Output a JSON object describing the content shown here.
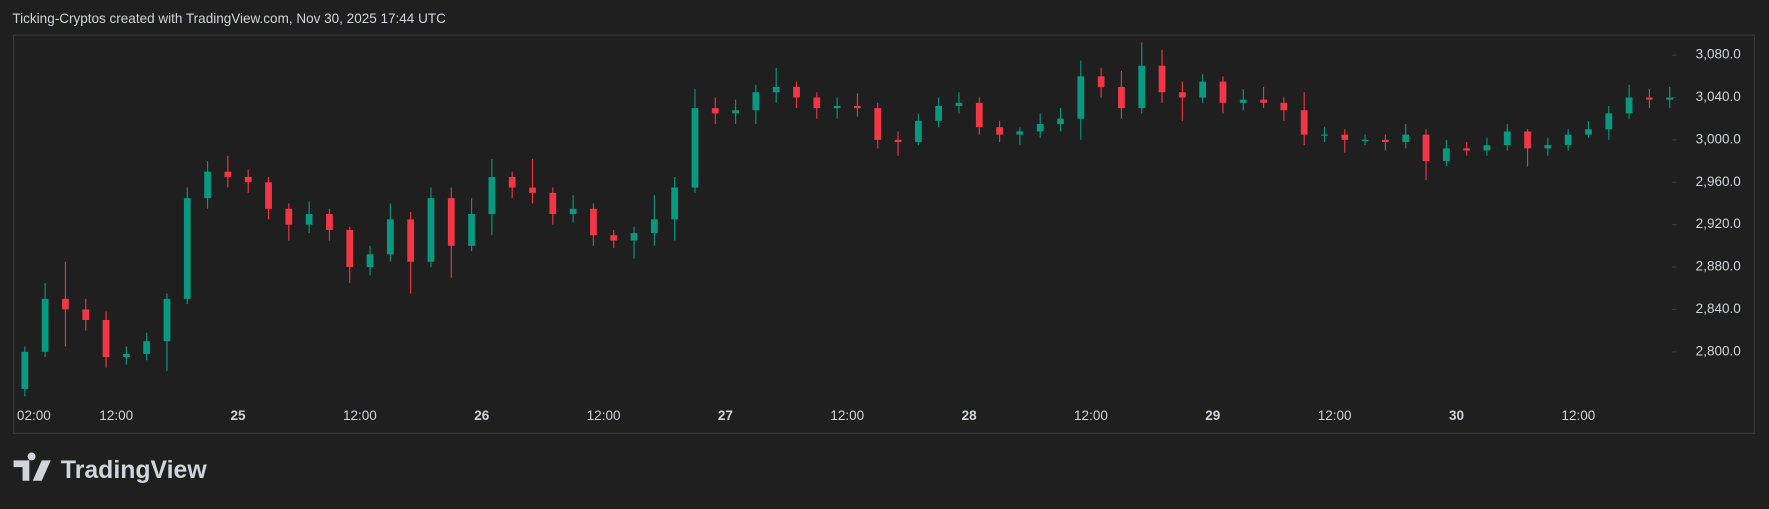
{
  "header": {
    "caption": "Ticking-Cryptos created with TradingView.com, Nov 30, 2025 17:44 UTC"
  },
  "brand": {
    "name": "TradingView"
  },
  "chart_data": {
    "type": "candlestick",
    "categories": [
      "02:00",
      null,
      null,
      null,
      null,
      "12:00",
      null,
      null,
      null,
      null,
      null,
      "25",
      null,
      null,
      null,
      null,
      null,
      "12:00",
      null,
      null,
      null,
      null,
      null,
      "26",
      null,
      null,
      null,
      null,
      null,
      "12:00",
      null,
      null,
      null,
      null,
      null,
      "27",
      null,
      null,
      null,
      null,
      null,
      "12:00",
      null,
      null,
      null,
      null,
      null,
      "28",
      null,
      null,
      null,
      null,
      null,
      "12:00",
      null,
      null,
      null,
      null,
      null,
      "29",
      null,
      null,
      null,
      null,
      null,
      "12:00",
      null,
      null,
      null,
      null,
      null,
      "30",
      null,
      null,
      null,
      null,
      null,
      "12:00",
      null,
      null,
      null,
      null
    ],
    "open": [
      2765,
      2800,
      2850,
      2840,
      2830,
      2795,
      2798,
      2810,
      2850,
      2945,
      2970,
      2965,
      2960,
      2935,
      2920,
      2930,
      2915,
      2880,
      2892,
      2925,
      2885,
      2945,
      2900,
      2930,
      2965,
      2955,
      2950,
      2930,
      2935,
      2910,
      2905,
      2912,
      2925,
      2955,
      3030,
      3025,
      3028,
      3045,
      3050,
      3040,
      3030,
      3032,
      3030,
      3000,
      2998,
      3018,
      3032,
      3035,
      3012,
      3005,
      3008,
      3015,
      3020,
      3060,
      3050,
      3030,
      3070,
      3045,
      3040,
      3055,
      3035,
      3038,
      3035,
      3028,
      3005,
      3005,
      3000,
      3000,
      2998,
      3005,
      2980,
      2992,
      2990,
      2995,
      3008,
      2992,
      2995,
      3005,
      3010,
      3025,
      3040,
      3038
    ],
    "high": [
      2805,
      2865,
      2885,
      2850,
      2838,
      2805,
      2818,
      2855,
      2955,
      2980,
      2985,
      2972,
      2965,
      2940,
      2942,
      2935,
      2918,
      2900,
      2940,
      2932,
      2955,
      2955,
      2945,
      2982,
      2970,
      2982,
      2955,
      2948,
      2940,
      2915,
      2918,
      2948,
      2965,
      3048,
      3040,
      3038,
      3052,
      3068,
      3055,
      3045,
      3040,
      3044,
      3035,
      3008,
      3025,
      3040,
      3045,
      3040,
      3018,
      3012,
      3025,
      3030,
      3075,
      3068,
      3065,
      3092,
      3085,
      3055,
      3062,
      3060,
      3048,
      3050,
      3040,
      3045,
      3012,
      3010,
      3005,
      3005,
      3015,
      3010,
      3000,
      2998,
      3002,
      3015,
      3010,
      3002,
      3010,
      3018,
      3032,
      3052,
      3048,
      3050
    ],
    "low": [
      2758,
      2795,
      2805,
      2820,
      2785,
      2788,
      2792,
      2782,
      2845,
      2935,
      2955,
      2950,
      2925,
      2905,
      2912,
      2905,
      2865,
      2872,
      2885,
      2855,
      2880,
      2870,
      2895,
      2910,
      2945,
      2940,
      2920,
      2922,
      2900,
      2898,
      2888,
      2900,
      2905,
      2950,
      3015,
      3015,
      3015,
      3035,
      3030,
      3020,
      3020,
      3022,
      2992,
      2985,
      2995,
      3012,
      3025,
      3005,
      2998,
      2995,
      3002,
      3008,
      3000,
      3040,
      3020,
      3025,
      3035,
      3018,
      3035,
      3025,
      3028,
      3030,
      3018,
      2995,
      2998,
      2988,
      2995,
      2990,
      2992,
      2962,
      2975,
      2985,
      2985,
      2990,
      2975,
      2985,
      2990,
      3002,
      3000,
      3020,
      3030,
      3030
    ],
    "close": [
      2800,
      2850,
      2840,
      2830,
      2795,
      2798,
      2810,
      2850,
      2945,
      2970,
      2965,
      2960,
      2935,
      2920,
      2930,
      2915,
      2880,
      2892,
      2925,
      2885,
      2945,
      2900,
      2930,
      2965,
      2955,
      2950,
      2930,
      2935,
      2910,
      2905,
      2912,
      2925,
      2955,
      3030,
      3025,
      3028,
      3045,
      3050,
      3040,
      3030,
      3032,
      3030,
      3000,
      2998,
      3018,
      3032,
      3035,
      3012,
      3005,
      3008,
      3015,
      3020,
      3060,
      3050,
      3030,
      3070,
      3045,
      3040,
      3055,
      3035,
      3038,
      3035,
      3028,
      3005,
      3005,
      3000,
      3000,
      2998,
      3005,
      2980,
      2992,
      2990,
      2995,
      3008,
      2992,
      2995,
      3005,
      3010,
      3025,
      3040,
      3038,
      3040
    ],
    "up_color": "#089981",
    "down_color": "#f23645",
    "ylim": [
      2755,
      3100
    ],
    "yticks": [
      {
        "value": 2800,
        "label": "2,800.0"
      },
      {
        "value": 2840,
        "label": "2,840.0"
      },
      {
        "value": 2880,
        "label": "2,880.0"
      },
      {
        "value": 2920,
        "label": "2,920.0"
      },
      {
        "value": 2960,
        "label": "2,960.0"
      },
      {
        "value": 3000,
        "label": "3,000.0"
      },
      {
        "value": 3040,
        "label": "3,040.0"
      },
      {
        "value": 3080,
        "label": "3,080.0"
      }
    ]
  }
}
